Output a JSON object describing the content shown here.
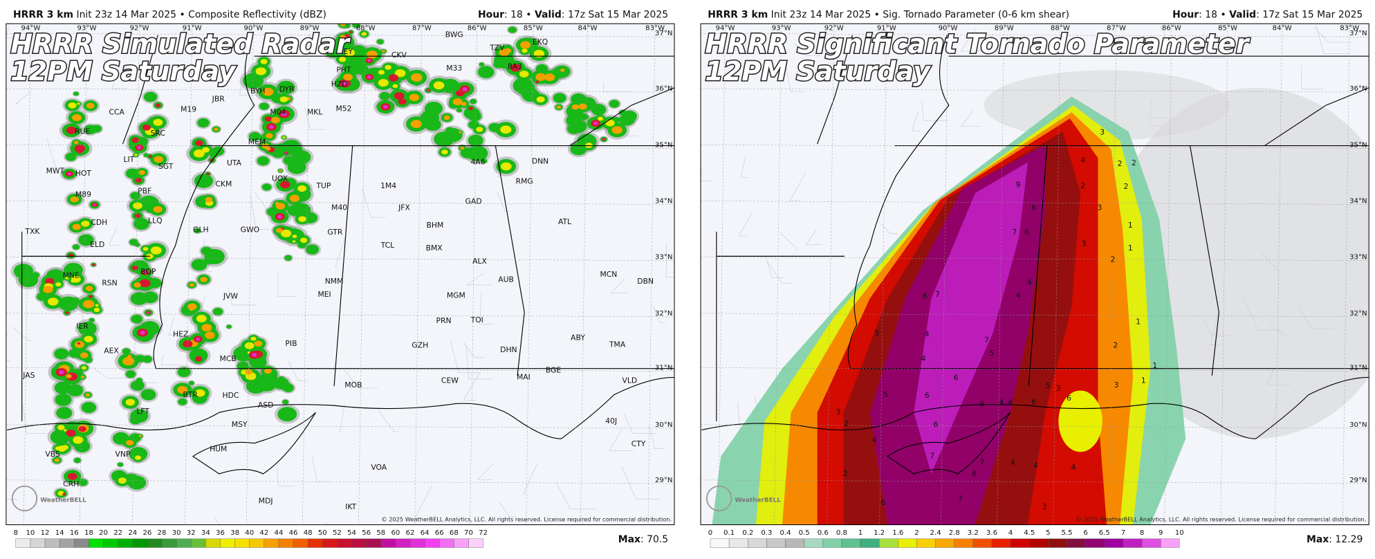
{
  "panels": [
    {
      "header": {
        "model": "HRRR 3 km",
        "info": " Init 23z 14 Mar 2025 • Composite Reflectivity (dBZ)",
        "right": [
          {
            "text": "Hour",
            "bold": true
          },
          {
            "text": ": 18 • ",
            "bold": false
          },
          {
            "text": "Valid",
            "bold": true
          },
          {
            "text": ": 17z Sat 15 Mar 2025",
            "bold": false
          }
        ]
      },
      "title": [
        "HRRR Simulated Radar",
        "12PM Saturday"
      ],
      "lon_labels": [
        "94°W",
        "93°W",
        "92°W",
        "91°W",
        "90°W",
        "89°W",
        "88°W",
        "87°W",
        "86°W",
        "85°W",
        "84°W",
        "83°W"
      ],
      "lat_labels": [
        "37°N",
        "36°N",
        "35°N",
        "34°N",
        "33°N",
        "32°N",
        "31°N",
        "30°N",
        "29°N"
      ],
      "labels": [
        "BWG",
        "TZV",
        "EKQ",
        "CEY",
        "CKV",
        "M33",
        "8A3",
        "PHT",
        "HZD",
        "M04",
        "MKL",
        "M52",
        "JBR",
        "BYH",
        "DYR",
        "M19",
        "CCA",
        "SRC",
        "RUE",
        "MEM",
        "UTA",
        "LIT",
        "SGT",
        "MWT",
        "HOT",
        "M89",
        "PBF",
        "UOX",
        "TUP",
        "CKM",
        "CDH",
        "LLQ",
        "GLH",
        "GWO",
        "M40",
        "GTR",
        "TXK",
        "ELD",
        "BQP",
        "MNE",
        "RSN",
        "JVW",
        "NMM",
        "MEI",
        "IER",
        "HEZ",
        "PIB",
        "AEX",
        "MCB",
        "JAS",
        "BTR",
        "HDC",
        "MOB",
        "CEW",
        "MAI",
        "BGE",
        "ASD",
        "LFT",
        "MSY",
        "HUM",
        "VNP",
        "VBS",
        "VOA",
        "CRH",
        "MDJ",
        "IKT",
        "DNN",
        "RMG",
        "GAD",
        "JFX",
        "ATL",
        "BHM",
        "TCL",
        "BMX",
        "ALX",
        "AUB",
        "MGM",
        "PRN",
        "TOI",
        "GZH",
        "DHN",
        "ABY",
        "TMA",
        "VLD",
        "CTY",
        "40J",
        "DBN",
        "MCN",
        "4A6",
        "1M4"
      ],
      "logo": "WeatherBELL",
      "copyright": "© 2025 WeatherBELL Analytics, LLC. All rights reserved. License required for commercial distribution.",
      "colorbar": {
        "ticks": [
          8,
          10,
          12,
          14,
          16,
          18,
          20,
          22,
          24,
          26,
          28,
          30,
          32,
          34,
          36,
          38,
          40,
          42,
          44,
          46,
          48,
          50,
          52,
          54,
          56,
          58,
          60,
          62,
          64,
          66,
          68,
          70,
          72
        ],
        "colors": [
          "#ececec",
          "#d6d6d6",
          "#bdbdbd",
          "#a3a3a3",
          "#8a8a8a",
          "#00e000",
          "#00c800",
          "#00b000",
          "#009800",
          "#208a20",
          "#3a9a3a",
          "#4fae4f",
          "#6abf3a",
          "#d8d800",
          "#eeee00",
          "#f5e000",
          "#f5c800",
          "#f5a000",
          "#f58000",
          "#f06000",
          "#e83000",
          "#d81818",
          "#c81030",
          "#b81040",
          "#a81050",
          "#c010a0",
          "#d020c0",
          "#e030d8",
          "#f040f0",
          "#f070f0",
          "#f8a0f8",
          "#fcd0fc"
        ]
      },
      "max_label": "Max",
      "max": ": 70.5"
    },
    {
      "header": {
        "model": "HRRR 3 km",
        "info": " Init 23z 14 Mar 2025 • Sig. Tornado Parameter (0-6 km shear)",
        "right": [
          {
            "text": "Hour",
            "bold": true
          },
          {
            "text": ": 18 • ",
            "bold": false
          },
          {
            "text": "Valid",
            "bold": true
          },
          {
            "text": ": 17z Sat 15 Mar 2025",
            "bold": false
          }
        ]
      },
      "title": [
        "HRRR Significant Tornado Parameter",
        "12PM Saturday"
      ],
      "lon_labels": [
        "94°W",
        "93°W",
        "92°W",
        "91°W",
        "90°W",
        "89°W",
        "88°W",
        "87°W",
        "86°W",
        "85°W",
        "84°W",
        "83°W"
      ],
      "lat_labels": [
        "37°N",
        "36°N",
        "35°N",
        "34°N",
        "33°N",
        "32°N",
        "31°N",
        "30°N",
        "29°N"
      ],
      "labels": [
        "3",
        "4",
        "2",
        "2",
        "9",
        "2",
        "2",
        "6",
        "3",
        "7",
        "6",
        "1",
        "3",
        "2",
        "1",
        "7",
        "6",
        "4",
        "4",
        "1",
        "5",
        "4",
        "7",
        "5",
        "2",
        "4",
        "1",
        "6",
        "1",
        "5",
        "3",
        "3",
        "5",
        "6",
        "6",
        "4",
        "4",
        "6",
        "6",
        "3",
        "2",
        "6",
        "7",
        "6",
        "4",
        "4",
        "4",
        "2",
        "6",
        "7",
        "3",
        "4",
        "7"
      ],
      "logo": "WeatherBELL",
      "copyright": "© 2025 WeatherBELL Analytics, LLC. All rights reserved. License required for commercial distribution.",
      "colorbar": {
        "ticks": [
          0,
          0.1,
          0.2,
          0.3,
          0.4,
          0.5,
          0.6,
          0.8,
          1,
          1.2,
          1.6,
          2,
          2.4,
          2.8,
          3.2,
          3.6,
          4,
          4.5,
          5,
          5.5,
          6,
          6.5,
          7,
          8,
          9,
          10
        ],
        "colors": [
          "#f8f8f8",
          "#e8e8e8",
          "#d8d8d8",
          "#c8c8c8",
          "#b8b8b8",
          "#a8d8c0",
          "#80d0a8",
          "#60c090",
          "#40b080",
          "#a8e040",
          "#e8f000",
          "#f8d000",
          "#f8a800",
          "#f88000",
          "#f05000",
          "#e82000",
          "#d00000",
          "#b00000",
          "#901010",
          "#801040",
          "#900070",
          "#a000a0",
          "#c020c0",
          "#e050e0",
          "#f8a0f8"
        ]
      },
      "max_label": "Max",
      "max": ": 12.29"
    }
  ]
}
